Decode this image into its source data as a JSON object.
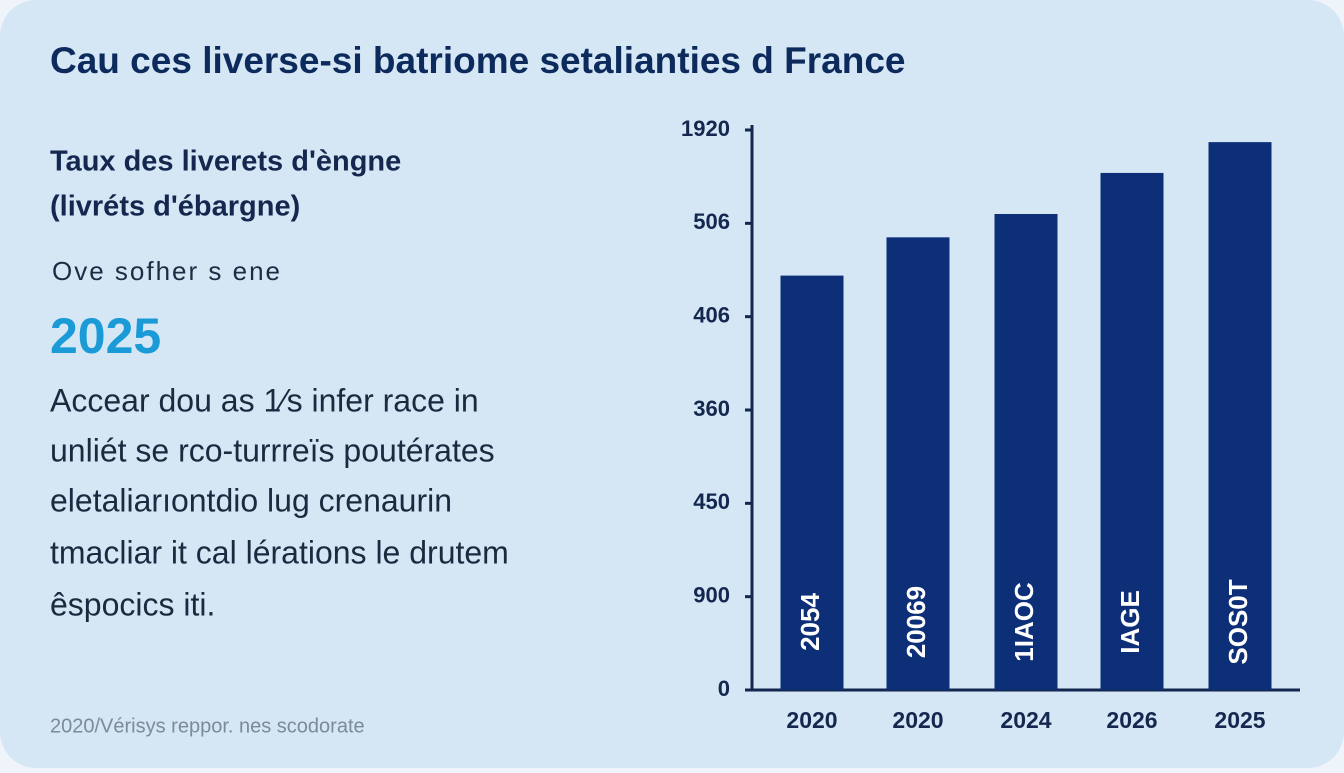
{
  "chart_data": {
    "type": "bar",
    "title": "Cau ces liverse-si batriome setalianties d France",
    "categories": [
      "2020",
      "2020",
      "2024",
      "2026",
      "2025"
    ],
    "values": [
      4.44,
      4.85,
      5.1,
      5.54,
      5.87
    ],
    "bar_labels": [
      "2054",
      "20069",
      "1IAOC",
      "IAGE",
      "SOS0T"
    ],
    "color": "#0c2f78",
    "ylim": [
      0,
      6
    ],
    "yticks": [
      {
        "value": 0,
        "label": "0"
      },
      {
        "value": 1,
        "label": "900"
      },
      {
        "value": 2,
        "label": "450"
      },
      {
        "value": 3,
        "label": "360"
      },
      {
        "value": 4,
        "label": "406"
      },
      {
        "value": 5,
        "label": "506"
      },
      {
        "value": 6,
        "label": "1920"
      }
    ]
  },
  "panel": {
    "subtitle": [
      "Taux des liverets d'èngne",
      "(livréts d'ébargne)"
    ],
    "kicker": "Ove sofher s ene",
    "year": "2025",
    "paragraph": [
      "Accear dou as 1⁄s infer race in",
      "unliét se rco-turrreïs poutérates",
      "eletaliarıontdio lug crenaurin",
      "tmacliar it cal lérations le drutem",
      "êspocics iti."
    ],
    "footer": "2020/Vérisys reppor. nes scodorate"
  }
}
